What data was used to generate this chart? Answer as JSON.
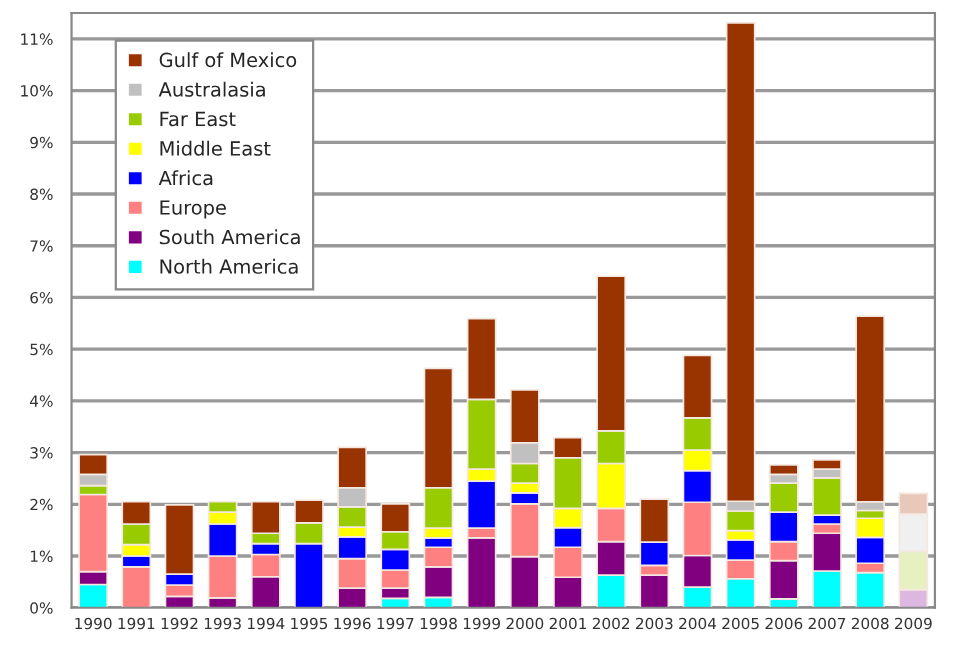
{
  "chart_data": {
    "type": "bar",
    "stacked": true,
    "categories": [
      "1990",
      "1991",
      "1992",
      "1993",
      "1994",
      "1995",
      "1996",
      "1997",
      "1998",
      "1999",
      "2000",
      "2001",
      "2002",
      "2003",
      "2004",
      "2005",
      "2006",
      "2007",
      "2008",
      "2009"
    ],
    "series": [
      {
        "name": "North America",
        "color": "#00ffff",
        "values": [
          0.45,
          null,
          null,
          null,
          null,
          null,
          null,
          0.18,
          0.2,
          null,
          null,
          null,
          0.63,
          null,
          0.4,
          0.56,
          0.17,
          0.71,
          0.68,
          null
        ]
      },
      {
        "name": "South America",
        "color": "#800080",
        "colors": [
          "#800080",
          "#800080",
          "#800080",
          "#800080",
          "#800080",
          "#800080",
          "#800080",
          "#800080",
          "#800080",
          "#800080",
          "#800080",
          "#800080",
          "#800080",
          "#800080",
          "#800080",
          "#800080",
          "#800080",
          "#800080",
          "#800080",
          "#dcb8e0"
        ],
        "values": [
          0.25,
          null,
          0.22,
          0.19,
          0.6,
          null,
          0.38,
          0.2,
          0.59,
          1.35,
          0.99,
          0.59,
          0.65,
          0.63,
          0.61,
          null,
          0.74,
          0.73,
          null,
          0.35
        ]
      },
      {
        "name": "Europe",
        "color": "#ff8080",
        "values": [
          1.49,
          0.79,
          0.22,
          0.81,
          0.43,
          null,
          0.57,
          0.35,
          0.38,
          0.19,
          1.02,
          0.58,
          0.64,
          0.19,
          1.03,
          0.36,
          0.37,
          0.18,
          0.18,
          null
        ]
      },
      {
        "name": "Africa",
        "color": "#0000ff",
        "values": [
          null,
          0.21,
          0.21,
          0.62,
          0.21,
          1.24,
          0.42,
          0.4,
          0.18,
          0.91,
          0.21,
          0.38,
          null,
          0.45,
          0.61,
          0.39,
          0.57,
          0.17,
          0.5,
          null
        ]
      },
      {
        "name": "Middle East",
        "color": "#ffff00",
        "values": [
          null,
          0.22,
          null,
          0.23,
          null,
          null,
          0.19,
          null,
          0.19,
          0.23,
          0.19,
          0.37,
          0.87,
          null,
          0.4,
          0.18,
          null,
          null,
          0.37,
          null
        ]
      },
      {
        "name": "Far East",
        "color": "#99cc00",
        "colors": [
          "#99cc00",
          "#99cc00",
          "#99cc00",
          "#99cc00",
          "#99cc00",
          "#99cc00",
          "#99cc00",
          "#99cc00",
          "#99cc00",
          "#99cc00",
          "#99cc00",
          "#99cc00",
          "#99cc00",
          "#99cc00",
          "#99cc00",
          "#99cc00",
          "#99cc00",
          "#99cc00",
          "#99cc00",
          "#e6f0c0"
        ],
        "values": [
          0.17,
          0.4,
          null,
          0.2,
          0.2,
          0.4,
          0.39,
          0.34,
          0.78,
          1.35,
          0.38,
          0.98,
          0.63,
          null,
          0.62,
          0.38,
          0.56,
          0.72,
          0.15,
          0.74
        ]
      },
      {
        "name": "Australasia",
        "color": "#c0c0c0",
        "colors": [
          "#c0c0c0",
          "#c0c0c0",
          "#c0c0c0",
          "#c0c0c0",
          "#c0c0c0",
          "#c0c0c0",
          "#c0c0c0",
          "#c0c0c0",
          "#c0c0c0",
          "#c0c0c0",
          "#c0c0c0",
          "#c0c0c0",
          "#c0c0c0",
          "#c0c0c0",
          "#c0c0c0",
          "#c0c0c0",
          "#c0c0c0",
          "#c0c0c0",
          "#c0c0c0",
          "#f0f0f0"
        ],
        "values": [
          0.22,
          null,
          null,
          null,
          null,
          null,
          0.37,
          null,
          null,
          null,
          0.4,
          null,
          null,
          null,
          null,
          0.19,
          0.17,
          0.17,
          0.17,
          0.72
        ]
      },
      {
        "name": "Gulf of Mexico",
        "color": "#993300",
        "colors": [
          "#993300",
          "#993300",
          "#993300",
          "#993300",
          "#993300",
          "#993300",
          "#993300",
          "#993300",
          "#993300",
          "#993300",
          "#993300",
          "#993300",
          "#993300",
          "#993300",
          "#993300",
          "#993300",
          "#993300",
          "#993300",
          "#993300",
          "#e8c8b8"
        ],
        "values": [
          0.38,
          0.43,
          1.34,
          null,
          0.61,
          0.44,
          0.78,
          0.54,
          2.31,
          1.56,
          1.02,
          0.39,
          2.99,
          0.83,
          1.21,
          9.25,
          0.18,
          0.18,
          3.59,
          0.4
        ]
      }
    ],
    "ylim": [
      0,
      11.5
    ],
    "yticks": [
      {
        "value": 0,
        "label": "0%"
      },
      {
        "value": 1,
        "label": "1%"
      },
      {
        "value": 2,
        "label": "2%"
      },
      {
        "value": 3,
        "label": "3%"
      },
      {
        "value": 4,
        "label": "4%"
      },
      {
        "value": 5,
        "label": "5%"
      },
      {
        "value": 6,
        "label": "6%"
      },
      {
        "value": 7,
        "label": "7%"
      },
      {
        "value": 8,
        "label": "8%"
      },
      {
        "value": 9,
        "label": "9%"
      },
      {
        "value": 10,
        "label": "10%"
      },
      {
        "value": 11,
        "label": "11%"
      }
    ],
    "grid": "y",
    "legend": "top left"
  }
}
